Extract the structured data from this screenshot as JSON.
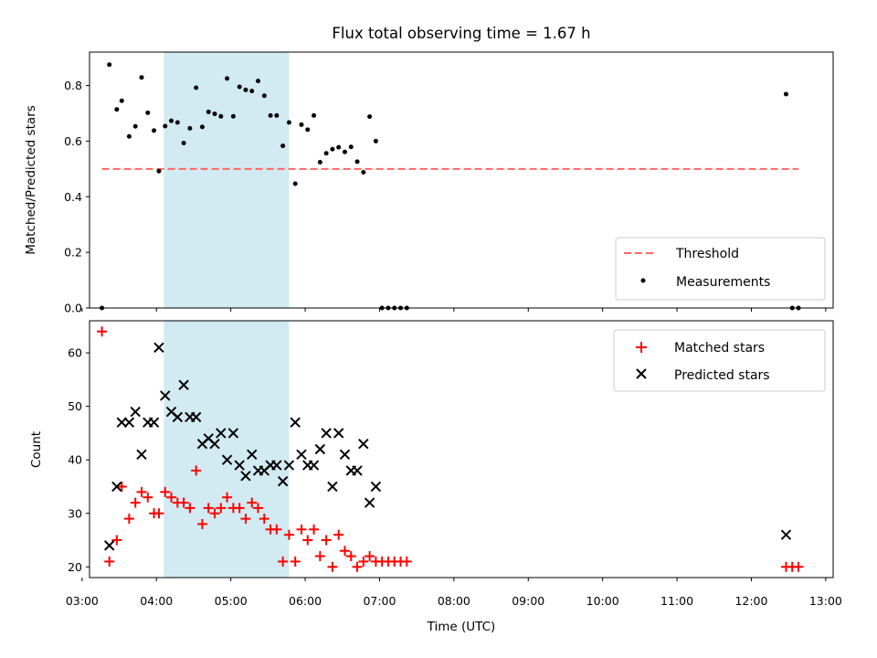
{
  "chart_data": [
    {
      "type": "scatter",
      "title": "Flux total observing time = 1.67 h",
      "xlabel": "",
      "ylabel": "Matched/Predicted stars",
      "xlim": [
        "03:06",
        "13:06"
      ],
      "ylim": [
        0,
        0.92
      ],
      "yticks": [
        0,
        0.2,
        0.4,
        0.6,
        0.8
      ],
      "ytick_labels": [
        "0.0",
        "0.2",
        "0.4",
        "0.6",
        "0.8"
      ],
      "grid": false,
      "legend_position": "lower-right",
      "shaded_interval": {
        "start": "04:06",
        "end": "05:47",
        "color": "#add8e6"
      },
      "threshold": {
        "name": "Threshold",
        "y": 0.5,
        "x_range": [
          "03:16",
          "12:38"
        ],
        "color": "#ff6666",
        "style": "dashed"
      },
      "series": [
        {
          "name": "Measurements",
          "marker": "dot",
          "color": "#000000",
          "points": [
            [
              "03:16",
              0.0
            ],
            [
              "03:22",
              0.875
            ],
            [
              "03:28",
              0.714
            ],
            [
              "03:32",
              0.745
            ],
            [
              "03:38",
              0.617
            ],
            [
              "03:43",
              0.653
            ],
            [
              "03:48",
              0.829
            ],
            [
              "03:53",
              0.702
            ],
            [
              "03:58",
              0.638
            ],
            [
              "04:02",
              0.492
            ],
            [
              "04:07",
              0.654
            ],
            [
              "04:12",
              0.673
            ],
            [
              "04:17",
              0.667
            ],
            [
              "04:22",
              0.593
            ],
            [
              "04:27",
              0.646
            ],
            [
              "04:32",
              0.792
            ],
            [
              "04:37",
              0.651
            ],
            [
              "04:42",
              0.705
            ],
            [
              "04:47",
              0.698
            ],
            [
              "04:52",
              0.689
            ],
            [
              "04:57",
              0.825
            ],
            [
              "05:02",
              0.689
            ],
            [
              "05:07",
              0.795
            ],
            [
              "05:12",
              0.784
            ],
            [
              "05:17",
              0.78
            ],
            [
              "05:22",
              0.816
            ],
            [
              "05:27",
              0.763
            ],
            [
              "05:32",
              0.692
            ],
            [
              "05:37",
              0.692
            ],
            [
              "05:42",
              0.583
            ],
            [
              "05:47",
              0.667
            ],
            [
              "05:52",
              0.447
            ],
            [
              "05:57",
              0.659
            ],
            [
              "06:02",
              0.641
            ],
            [
              "06:07",
              0.692
            ],
            [
              "06:12",
              0.524
            ],
            [
              "06:17",
              0.556
            ],
            [
              "06:22",
              0.571
            ],
            [
              "06:27",
              0.578
            ],
            [
              "06:32",
              0.561
            ],
            [
              "06:37",
              0.579
            ],
            [
              "06:42",
              0.526
            ],
            [
              "06:47",
              0.488
            ],
            [
              "06:52",
              0.688
            ],
            [
              "06:57",
              0.6
            ],
            [
              "07:02",
              0.0
            ],
            [
              "07:07",
              0.0
            ],
            [
              "07:12",
              0.0
            ],
            [
              "07:17",
              0.0
            ],
            [
              "07:22",
              0.0
            ],
            [
              "12:28",
              0.769
            ],
            [
              "12:33",
              0.0
            ],
            [
              "12:38",
              0.0
            ]
          ]
        }
      ]
    },
    {
      "type": "scatter",
      "title": "",
      "xlabel": "Time (UTC)",
      "ylabel": "Count",
      "xlim": [
        "03:06",
        "13:06"
      ],
      "ylim": [
        18,
        66
      ],
      "yticks": [
        20,
        30,
        40,
        50,
        60
      ],
      "ytick_labels": [
        "20",
        "30",
        "40",
        "50",
        "60"
      ],
      "xticks": [
        "03:00",
        "04:00",
        "05:00",
        "06:00",
        "07:00",
        "08:00",
        "09:00",
        "10:00",
        "11:00",
        "12:00",
        "13:00"
      ],
      "grid": false,
      "legend_position": "upper-right",
      "shaded_interval": {
        "start": "04:06",
        "end": "05:47",
        "color": "#add8e6"
      },
      "series": [
        {
          "name": "Matched stars",
          "marker": "plus",
          "color": "#ff0000",
          "points": [
            [
              "03:16",
              64
            ],
            [
              "03:22",
              21
            ],
            [
              "03:28",
              25
            ],
            [
              "03:32",
              35
            ],
            [
              "03:38",
              29
            ],
            [
              "03:43",
              32
            ],
            [
              "03:48",
              34
            ],
            [
              "03:53",
              33
            ],
            [
              "03:58",
              30
            ],
            [
              "04:02",
              30
            ],
            [
              "04:07",
              34
            ],
            [
              "04:12",
              33
            ],
            [
              "04:17",
              32
            ],
            [
              "04:22",
              32
            ],
            [
              "04:27",
              31
            ],
            [
              "04:32",
              38
            ],
            [
              "04:37",
              28
            ],
            [
              "04:42",
              31
            ],
            [
              "04:47",
              30
            ],
            [
              "04:52",
              31
            ],
            [
              "04:57",
              33
            ],
            [
              "05:02",
              31
            ],
            [
              "05:07",
              31
            ],
            [
              "05:12",
              29
            ],
            [
              "05:17",
              32
            ],
            [
              "05:22",
              31
            ],
            [
              "05:27",
              29
            ],
            [
              "05:32",
              27
            ],
            [
              "05:37",
              27
            ],
            [
              "05:42",
              21
            ],
            [
              "05:47",
              26
            ],
            [
              "05:52",
              21
            ],
            [
              "05:57",
              27
            ],
            [
              "06:02",
              25
            ],
            [
              "06:07",
              27
            ],
            [
              "06:12",
              22
            ],
            [
              "06:17",
              25
            ],
            [
              "06:22",
              20
            ],
            [
              "06:27",
              26
            ],
            [
              "06:32",
              23
            ],
            [
              "06:37",
              22
            ],
            [
              "06:42",
              20
            ],
            [
              "06:47",
              21
            ],
            [
              "06:52",
              22
            ],
            [
              "06:57",
              21
            ],
            [
              "07:02",
              21
            ],
            [
              "07:07",
              21
            ],
            [
              "07:12",
              21
            ],
            [
              "07:17",
              21
            ],
            [
              "07:22",
              21
            ],
            [
              "12:28",
              20
            ],
            [
              "12:33",
              20
            ],
            [
              "12:38",
              20
            ]
          ]
        },
        {
          "name": "Predicted stars",
          "marker": "x",
          "color": "#000000",
          "points": [
            [
              "03:22",
              24
            ],
            [
              "03:28",
              35
            ],
            [
              "03:32",
              47
            ],
            [
              "03:38",
              47
            ],
            [
              "03:43",
              49
            ],
            [
              "03:48",
              41
            ],
            [
              "03:53",
              47
            ],
            [
              "03:58",
              47
            ],
            [
              "04:02",
              61
            ],
            [
              "04:07",
              52
            ],
            [
              "04:12",
              49
            ],
            [
              "04:17",
              48
            ],
            [
              "04:22",
              54
            ],
            [
              "04:27",
              48
            ],
            [
              "04:32",
              48
            ],
            [
              "04:37",
              43
            ],
            [
              "04:42",
              44
            ],
            [
              "04:47",
              43
            ],
            [
              "04:52",
              45
            ],
            [
              "04:57",
              40
            ],
            [
              "05:02",
              45
            ],
            [
              "05:07",
              39
            ],
            [
              "05:12",
              37
            ],
            [
              "05:17",
              41
            ],
            [
              "05:22",
              38
            ],
            [
              "05:27",
              38
            ],
            [
              "05:32",
              39
            ],
            [
              "05:37",
              39
            ],
            [
              "05:42",
              36
            ],
            [
              "05:47",
              39
            ],
            [
              "05:52",
              47
            ],
            [
              "05:57",
              41
            ],
            [
              "06:02",
              39
            ],
            [
              "06:07",
              39
            ],
            [
              "06:12",
              42
            ],
            [
              "06:17",
              45
            ],
            [
              "06:22",
              35
            ],
            [
              "06:27",
              45
            ],
            [
              "06:32",
              41
            ],
            [
              "06:37",
              38
            ],
            [
              "06:42",
              38
            ],
            [
              "06:47",
              43
            ],
            [
              "06:52",
              32
            ],
            [
              "06:57",
              35
            ],
            [
              "12:28",
              26
            ]
          ]
        }
      ]
    }
  ]
}
